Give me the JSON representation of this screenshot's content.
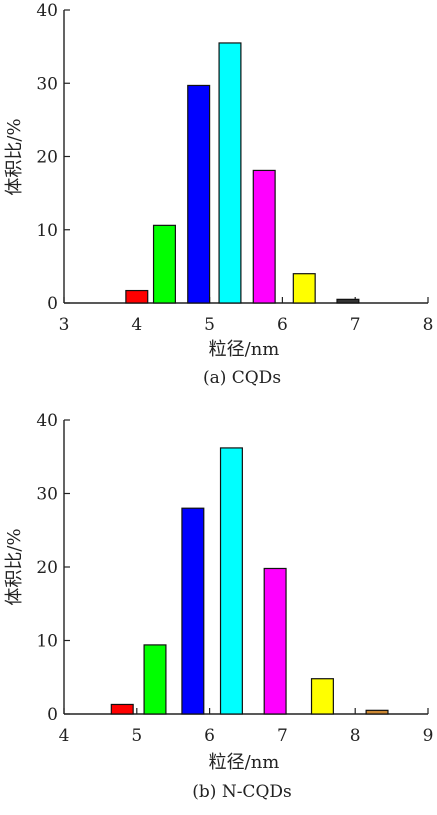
{
  "chart_data": [
    {
      "type": "bar",
      "caption": "(a) CQDs",
      "xlabel": "粒径/nm",
      "ylabel": "体积比/%",
      "xlim": [
        3,
        8
      ],
      "ylim": [
        0,
        40
      ],
      "xticks": [
        "3",
        "4",
        "5",
        "6",
        "7",
        "8"
      ],
      "yticks": [
        "0",
        "10",
        "20",
        "30",
        "40"
      ],
      "bar_width": 0.3,
      "bars": [
        {
          "x": 4.0,
          "value": 1.7,
          "color": "#ff0000"
        },
        {
          "x": 4.38,
          "value": 10.6,
          "color": "#00ff00"
        },
        {
          "x": 4.85,
          "value": 29.7,
          "color": "#0000ff"
        },
        {
          "x": 5.28,
          "value": 35.5,
          "color": "#00ffff"
        },
        {
          "x": 5.75,
          "value": 18.1,
          "color": "#ff00ff"
        },
        {
          "x": 6.3,
          "value": 4.0,
          "color": "#ffff00"
        },
        {
          "x": 6.9,
          "value": 0.5,
          "color": "#333333"
        }
      ]
    },
    {
      "type": "bar",
      "caption": "(b) N-CQDs",
      "xlabel": "粒径/nm",
      "ylabel": "体积比/%",
      "xlim": [
        4,
        9
      ],
      "ylim": [
        0,
        40
      ],
      "xticks": [
        "4",
        "5",
        "6",
        "7",
        "8",
        "9"
      ],
      "yticks": [
        "0",
        "10",
        "20",
        "30",
        "40"
      ],
      "bar_width": 0.3,
      "bars": [
        {
          "x": 4.8,
          "value": 1.3,
          "color": "#ff0000"
        },
        {
          "x": 5.25,
          "value": 9.4,
          "color": "#00ff00"
        },
        {
          "x": 5.77,
          "value": 28.0,
          "color": "#0000ff"
        },
        {
          "x": 6.3,
          "value": 36.2,
          "color": "#00ffff"
        },
        {
          "x": 6.9,
          "value": 19.8,
          "color": "#ff00ff"
        },
        {
          "x": 7.55,
          "value": 4.8,
          "color": "#ffff00"
        },
        {
          "x": 8.3,
          "value": 0.5,
          "color": "#cc8833"
        }
      ]
    }
  ]
}
